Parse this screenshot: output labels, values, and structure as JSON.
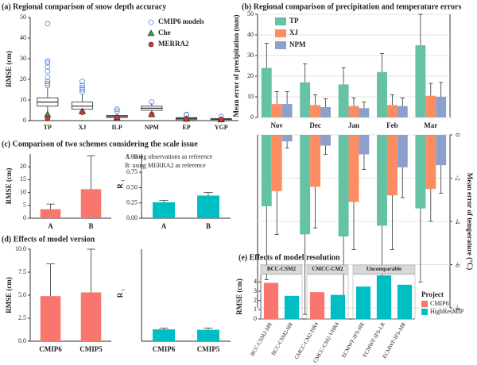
{
  "chart_data": [
    {
      "type": "box",
      "title": "(a) Regional comparison of snow depth accuracy",
      "ylabel": "RMSE (cm)",
      "categories": [
        "TP",
        "XJ",
        "ILP",
        "NPM",
        "EP",
        "YGP"
      ],
      "ylim": [
        0,
        50
      ],
      "yticks": [
        0,
        10,
        20,
        30,
        40,
        50
      ],
      "legend": "top-right",
      "series": [
        {
          "name": "CMIP6 models",
          "color": "#4e86d8",
          "whisker_low": [
            4,
            3,
            1,
            4,
            0.2,
            0.2
          ],
          "q1": [
            7,
            5.5,
            1.5,
            5,
            0.5,
            0.5
          ],
          "median": [
            9,
            7,
            2,
            6,
            1,
            0.7
          ],
          "q3": [
            11,
            9,
            2.5,
            7,
            1.5,
            1
          ],
          "whisker_high": [
            16,
            13,
            3.5,
            8.5,
            2,
            1.5
          ],
          "outliers": [
            [
              47,
              29,
              28,
              26,
              24,
              21,
              19,
              18,
              17
            ],
            [
              19,
              17,
              16,
              15,
              14
            ],
            [
              5.5,
              4.5
            ],
            [
              9
            ],
            [
              3,
              2.8
            ],
            [
              2
            ]
          ]
        },
        {
          "name": "Che",
          "color": "#2e9e3e",
          "values": [
            3,
            4.5,
            1.5,
            3,
            0.8,
            0.5
          ]
        },
        {
          "name": "MERRA2",
          "color": "#e03030",
          "values": [
            1,
            4,
            1.5,
            3,
            0.8,
            0.5
          ]
        }
      ]
    },
    {
      "type": "bar",
      "title": "(b) Regional comparison of precipitation and temperature errors",
      "ylabel": "Mean error of precipitation (mm)",
      "categories": [
        "Nov",
        "Dec",
        "Jan",
        "Feb",
        "Mar"
      ],
      "ylim": [
        0,
        50
      ],
      "yticks": [
        0,
        10,
        20,
        30,
        40,
        50
      ],
      "grid": true,
      "frame": true,
      "legend": "top-left",
      "series": [
        {
          "name": "TP",
          "color": "#66c2a5",
          "values": [
            24,
            17,
            16,
            22,
            35
          ],
          "errors": [
            12,
            9,
            8,
            9,
            15
          ]
        },
        {
          "name": "XJ",
          "color": "#fc8d62",
          "values": [
            6.5,
            6,
            5.5,
            6,
            10.5
          ],
          "errors": [
            6,
            5,
            4,
            5,
            6
          ]
        },
        {
          "name": "NPM",
          "color": "#8da0cb",
          "values": [
            6.5,
            5,
            4.5,
            5.5,
            10
          ],
          "errors": [
            6,
            4,
            3,
            4,
            7
          ]
        }
      ]
    },
    {
      "type": "bar",
      "ylabel": "Mean error of temperature (°C)",
      "ylim": [
        -8,
        0
      ],
      "yticks": [
        0,
        -2,
        -4,
        -6,
        -8
      ],
      "yaxis_side": "right",
      "grid": true,
      "frame": true,
      "series": [
        {
          "color": "#66c2a5",
          "values": [
            -3.3,
            -4.6,
            -4.7,
            -4.2,
            -3.4
          ],
          "errors": [
            3.4,
            3.7,
            3.8,
            2.8,
            3.4
          ]
        },
        {
          "color": "#fc8d62",
          "values": [
            -2.6,
            -2.4,
            -3.1,
            -2.8,
            -2.5
          ],
          "errors": [
            2.0,
            1.9,
            2.2,
            2.5,
            1.5
          ]
        },
        {
          "color": "#8da0cb",
          "values": [
            -0.3,
            -0.5,
            -0.9,
            -1.5,
            -1.4
          ],
          "errors": [
            0.3,
            0.4,
            0.7,
            1.4,
            1.3
          ]
        }
      ]
    },
    {
      "type": "bar",
      "title": "(c) Comparison of two schemes considering the scale issue",
      "ylabel": "RMSE (cm)",
      "categories": [
        "A",
        "B"
      ],
      "color": "#f8766d",
      "values": [
        3.5,
        11.3
      ],
      "errors": [
        2,
        13
      ],
      "ylim": [
        0,
        25
      ],
      "yticks": [
        0,
        5,
        10,
        15,
        20
      ]
    },
    {
      "type": "bar",
      "ylabel": "R",
      "ylabel_sub": "t",
      "categories": [
        "A",
        "B"
      ],
      "color": "#00bfc4",
      "values": [
        0.26,
        0.37
      ],
      "errors": [
        0.03,
        0.05
      ],
      "ylim": [
        0,
        1.05
      ],
      "yticks": [
        {
          "value": 0,
          "label": "0.00"
        },
        0.25,
        {
          "value": 0.5,
          "label": "0.50"
        },
        0.75,
        {
          "value": 1,
          "label": "1.00"
        }
      ],
      "annotations": [
        "A: using observations as reference",
        "B: using MERRA2 as reference"
      ]
    },
    {
      "type": "bar",
      "title": "(d) Effects of model version",
      "ylabel": "RMSE (cm)",
      "categories": [
        "CMIP6",
        "CMIP5"
      ],
      "color": "#f8766d",
      "values": [
        4.9,
        5.3
      ],
      "errors": [
        3.5,
        4.7
      ],
      "ylim": [
        0,
        10
      ],
      "yticks": [
        {
          "value": 0,
          "label": "0.0"
        },
        2.5,
        {
          "value": 5,
          "label": "5.0"
        },
        7.5,
        {
          "value": 10,
          "label": "10.0"
        }
      ]
    },
    {
      "type": "bar",
      "ylabel": "R",
      "ylabel_sub": "t",
      "categories": [
        "CMIP6",
        "CMIP5"
      ],
      "color": "#00bfc4",
      "values": [
        0.27,
        0.26
      ],
      "errors": [
        0.03,
        0.04
      ],
      "ylim": [
        0,
        2.1
      ]
    },
    {
      "type": "faceted_bar",
      "title": "(e) Effects of model resolution",
      "ylabel": "RMSE (cm)",
      "ylim": [
        0,
        4.8
      ],
      "yticks": [
        0,
        1,
        2,
        3,
        4
      ],
      "legend_title": "Project",
      "series": [
        {
          "name": "CMIP6",
          "color": "#f8766d"
        },
        {
          "name": "HighResMIP",
          "color": "#00bfc4"
        }
      ],
      "facets": [
        {
          "name": "BCC-CSM2",
          "categories": [
            "BCC-CSM2-MR",
            "BCC-CSM2-HR"
          ],
          "values": [
            3.9,
            2.5
          ],
          "project": [
            "CMIP6",
            "HighResMIP"
          ]
        },
        {
          "name": "CMCC-CM2",
          "categories": [
            "CMCC-CM2-HR4",
            "CMCC-CM2-VHR4"
          ],
          "values": [
            2.9,
            2.6
          ],
          "project": [
            "CMIP6",
            "HighResMIP"
          ]
        },
        {
          "name": "Uncomparable",
          "categories": [
            "ECMWF-IFS-HR",
            "ECMWF-IFS-LR",
            "ECMWF-IFS-MR"
          ],
          "values": [
            3.5,
            4.7,
            3.7
          ],
          "project": [
            "HighResMIP",
            "HighResMIP",
            "HighResMIP"
          ]
        }
      ]
    }
  ]
}
